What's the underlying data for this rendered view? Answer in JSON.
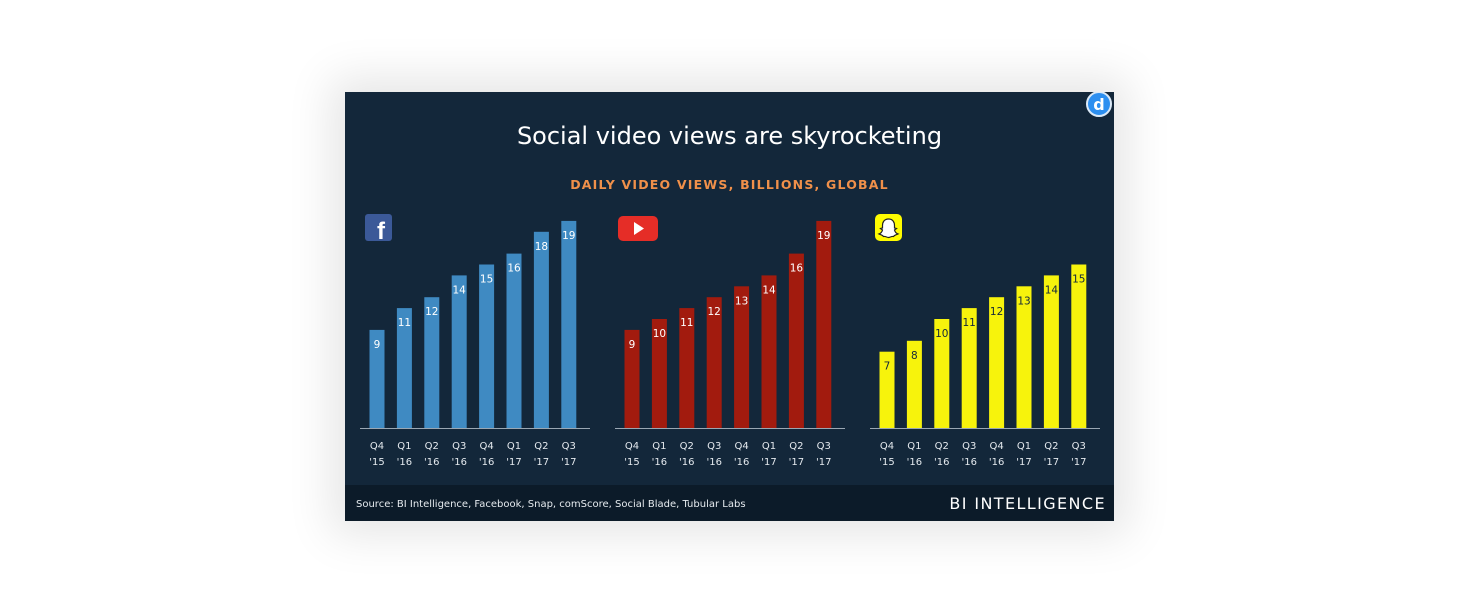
{
  "title": "Social video views are skyrocketing",
  "subtitle": "DAILY VIDEO VIEWS, BILLIONS, GLOBAL",
  "source": "Source: BI Intelligence, Facebook, Snap, comScore, Social Blade, Tubular Labs",
  "brand": "BI INTELLIGENCE",
  "badge_icon": "d-badge-icon",
  "chart_data": [
    {
      "type": "bar",
      "icon": "facebook-logo-icon",
      "icon_color": "#3b5998",
      "color": "#3f8ac2",
      "categories": [
        "Q4",
        "Q1",
        "Q2",
        "Q3",
        "Q4",
        "Q1",
        "Q2",
        "Q3"
      ],
      "years": [
        "'15",
        "'16",
        "'16",
        "'16",
        "'16",
        "'17",
        "'17",
        "'17"
      ],
      "values": [
        9,
        11,
        12,
        14,
        15,
        16,
        18,
        19
      ],
      "label_color": "#ffffff",
      "ylim": [
        0,
        20
      ],
      "grid": false
    },
    {
      "type": "bar",
      "icon": "youtube-logo-icon",
      "icon_color": "#e52d27",
      "color": "#a21b0e",
      "categories": [
        "Q4",
        "Q1",
        "Q2",
        "Q3",
        "Q4",
        "Q1",
        "Q2",
        "Q3"
      ],
      "years": [
        "'15",
        "'16",
        "'16",
        "'16",
        "'16",
        "'17",
        "'17",
        "'17"
      ],
      "values": [
        9,
        10,
        11,
        12,
        13,
        14,
        16,
        19
      ],
      "label_color": "#ffffff",
      "ylim": [
        0,
        20
      ],
      "grid": false
    },
    {
      "type": "bar",
      "icon": "snapchat-logo-icon",
      "icon_color": "#fffc00",
      "color": "#f7f30c",
      "categories": [
        "Q4",
        "Q1",
        "Q2",
        "Q3",
        "Q4",
        "Q1",
        "Q2",
        "Q3"
      ],
      "years": [
        "'15",
        "'16",
        "'16",
        "'16",
        "'16",
        "'17",
        "'17",
        "'17"
      ],
      "values": [
        7,
        8,
        10,
        11,
        12,
        13,
        14,
        15
      ],
      "label_color": "#13273a",
      "ylim": [
        0,
        20
      ],
      "grid": false
    }
  ]
}
